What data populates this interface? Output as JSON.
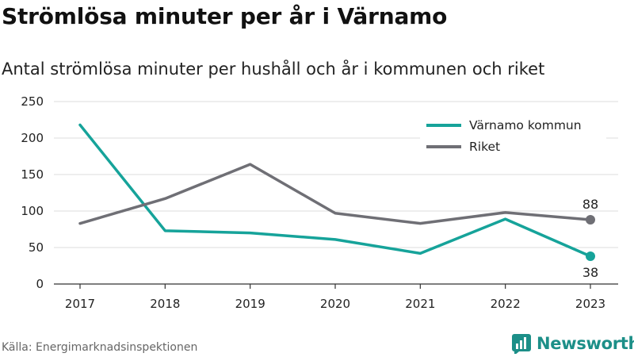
{
  "header": {
    "title": "Strömlösa minuter per år i Värnamo",
    "subtitle": "Antal strömlösa minuter per hushåll och år i kommunen och riket"
  },
  "footer": {
    "source": "Källa: Energimarknadsinspektionen",
    "brand": "Newsworthy"
  },
  "chart_data": {
    "type": "line",
    "categories": [
      "2017",
      "2018",
      "2019",
      "2020",
      "2021",
      "2022",
      "2023"
    ],
    "series": [
      {
        "name": "Värnamo kommun",
        "color": "#16a39a",
        "values": [
          218,
          73,
          70,
          61,
          42,
          89,
          38
        ]
      },
      {
        "name": "Riket",
        "color": "#6f6f75",
        "values": [
          83,
          117,
          164,
          97,
          83,
          98,
          88
        ]
      }
    ],
    "end_labels": [
      "38",
      "88"
    ],
    "ylim": [
      0,
      250
    ],
    "yticks": [
      0,
      50,
      100,
      150,
      200,
      250
    ],
    "grid": true,
    "legend": "top-right",
    "xlabel": "",
    "ylabel": ""
  }
}
